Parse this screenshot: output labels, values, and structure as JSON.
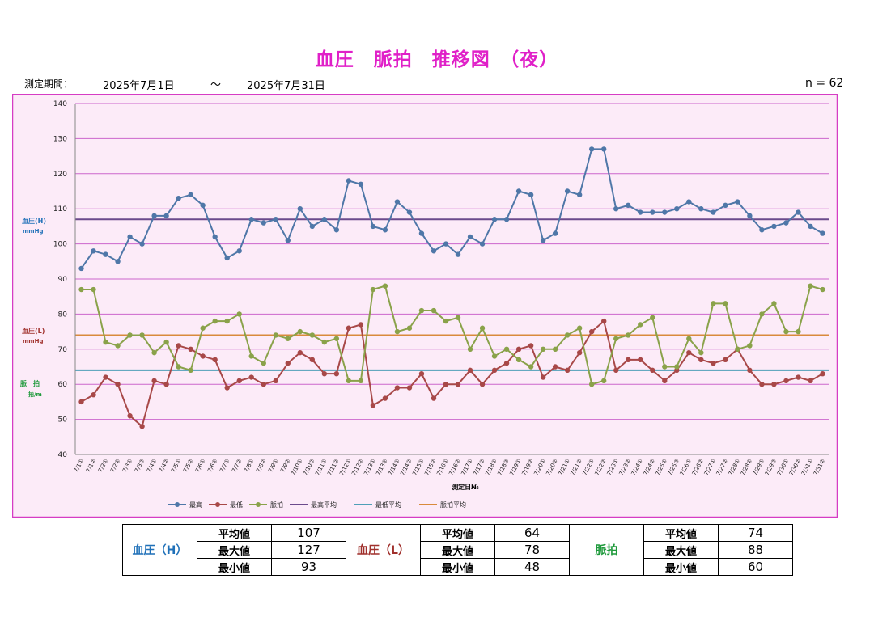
{
  "title": "血圧　脈拍　推移図　（夜）",
  "period": {
    "label": "測定期間：",
    "start": "2025年7月1日",
    "tilde": "～",
    "end": "2025年7月31日"
  },
  "count_label": "n = 62",
  "colors": {
    "background": "#fcebf8",
    "border": "#d63cc4",
    "grid": "#cc66cc",
    "high": "#4f77a8",
    "low": "#a84848",
    "pulse": "#8aa24a",
    "high_avg": "#6b4a8c",
    "low_avg": "#4f9fb8",
    "pulse_avg": "#d98a3c",
    "title": "#e020c8"
  },
  "chart_data": {
    "type": "line",
    "xlabel": "測定日№",
    "y_axis_labels": {
      "high": {
        "line1": "血圧(H)",
        "line2": "mmHg",
        "color": "#1f70b8"
      },
      "low": {
        "line1": "血圧(L)",
        "line2": "mmHg",
        "color": "#a0302c"
      },
      "pulse": {
        "line1": "脈　拍",
        "line2": "拍/m",
        "color": "#1f9a3c"
      }
    },
    "ylim": [
      40,
      140
    ],
    "yticks": [
      "40",
      "50",
      "60",
      "70",
      "80",
      "90",
      "100",
      "110",
      "120",
      "130",
      "140"
    ],
    "categories": [
      "7/1①",
      "7/1②",
      "7/2①",
      "7/2②",
      "7/3①",
      "7/3②",
      "7/4①",
      "7/4②",
      "7/5①",
      "7/5②",
      "7/6①",
      "7/6②",
      "7/7①",
      "7/7②",
      "7/8①",
      "7/8②",
      "7/9①",
      "7/9②",
      "7/10①",
      "7/10②",
      "7/11①",
      "7/11②",
      "7/12①",
      "7/12②",
      "7/13①",
      "7/13②",
      "7/14①",
      "7/14②",
      "7/15①",
      "7/15②",
      "7/16①",
      "7/16②",
      "7/17①",
      "7/17②",
      "7/18①",
      "7/18②",
      "7/19①",
      "7/19②",
      "7/20①",
      "7/20②",
      "7/21①",
      "7/21②",
      "7/22①",
      "7/22②",
      "7/23①",
      "7/23②",
      "7/24①",
      "7/24②",
      "7/25①",
      "7/25②",
      "7/26①",
      "7/26②",
      "7/27①",
      "7/27②",
      "7/28①",
      "7/28②",
      "7/29①",
      "7/29②",
      "7/30①",
      "7/30②",
      "7/31①",
      "7/31②"
    ],
    "series": [
      {
        "name": "最高",
        "color": "#4f77a8",
        "values": [
          93,
          98,
          97,
          95,
          102,
          100,
          108,
          108,
          113,
          114,
          111,
          102,
          96,
          98,
          107,
          106,
          107,
          101,
          110,
          105,
          107,
          104,
          118,
          117,
          105,
          104,
          112,
          109,
          103,
          98,
          100,
          97,
          102,
          100,
          107,
          107,
          115,
          114,
          101,
          103,
          115,
          114,
          127,
          127,
          110,
          111,
          109,
          109,
          109,
          110,
          112,
          110,
          109,
          111,
          112,
          108,
          104,
          105,
          106,
          109,
          105,
          103
        ]
      },
      {
        "name": "最低",
        "color": "#a84848",
        "values": [
          55,
          57,
          62,
          60,
          51,
          48,
          61,
          60,
          71,
          70,
          68,
          67,
          59,
          61,
          62,
          60,
          61,
          66,
          69,
          67,
          63,
          63,
          76,
          77,
          54,
          56,
          59,
          59,
          63,
          56,
          60,
          60,
          64,
          60,
          64,
          66,
          70,
          71,
          62,
          65,
          64,
          69,
          75,
          78,
          64,
          67,
          67,
          64,
          61,
          64,
          69,
          67,
          66,
          67,
          70,
          64,
          60,
          60,
          61,
          62,
          61,
          63
        ]
      },
      {
        "name": "脈拍",
        "color": "#8aa24a",
        "values": [
          87,
          87,
          72,
          71,
          74,
          74,
          69,
          72,
          65,
          64,
          76,
          78,
          78,
          80,
          68,
          66,
          74,
          73,
          75,
          74,
          72,
          73,
          61,
          61,
          87,
          88,
          75,
          76,
          81,
          81,
          78,
          79,
          70,
          76,
          68,
          70,
          67,
          65,
          70,
          70,
          74,
          76,
          60,
          61,
          73,
          74,
          77,
          79,
          65,
          65,
          73,
          69,
          83,
          83,
          70,
          71,
          80,
          83,
          75,
          75,
          88,
          87
        ]
      }
    ],
    "averages": [
      {
        "name": "最高平均",
        "value": 107,
        "color": "#6b4a8c"
      },
      {
        "name": "最低平均",
        "value": 64,
        "color": "#4f9fb8"
      },
      {
        "name": "脈拍平均",
        "value": 74,
        "color": "#d98a3c"
      }
    ],
    "legend": [
      "最高",
      "最低",
      "脈拍",
      "最高平均",
      "最低平均",
      "脈拍平均"
    ],
    "legend_position": "bottom",
    "grid": true
  },
  "stats": {
    "high": {
      "group": "血圧（H）",
      "color": "#1f70b8",
      "avg_label": "平均値",
      "avg": "107",
      "max_label": "最大値",
      "max": "127",
      "min_label": "最小値",
      "min": "93"
    },
    "low": {
      "group": "血圧（L）",
      "color": "#a0302c",
      "avg_label": "平均値",
      "avg": "64",
      "max_label": "最大値",
      "max": "78",
      "min_label": "最小値",
      "min": "48"
    },
    "pulse": {
      "group": "脈拍",
      "color": "#1f9a3c",
      "avg_label": "平均値",
      "avg": "74",
      "max_label": "最大値",
      "max": "88",
      "min_label": "最小値",
      "min": "60"
    }
  }
}
